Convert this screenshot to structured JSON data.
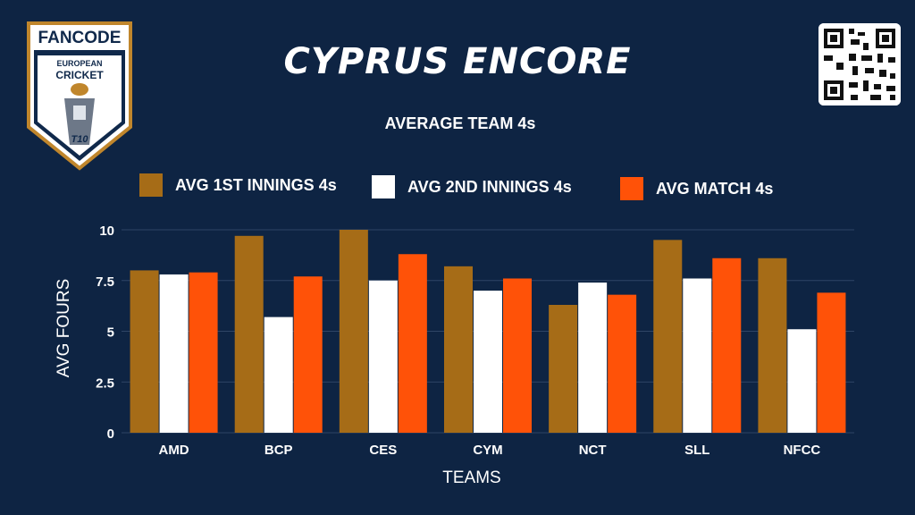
{
  "header": {
    "title": "CYPRUS ENCORE",
    "logo_brand": "FANCODE",
    "logo_line1": "EUROPEAN",
    "logo_line2": "CRICKET",
    "logo_badge": "T10"
  },
  "chart_data": {
    "type": "bar",
    "title": "AVERAGE TEAM 4s",
    "xlabel": "TEAMS",
    "ylabel": "AVG FOURS",
    "categories": [
      "AMD",
      "BCP",
      "CES",
      "CYM",
      "NCT",
      "SLL",
      "NFCC"
    ],
    "ylim": [
      0,
      10
    ],
    "yticks": [
      "0",
      "2.5",
      "5",
      "7.5",
      "10"
    ],
    "series": [
      {
        "name": "AVG 1ST INNINGS 4s",
        "color": "#a66c17",
        "values": [
          8.0,
          9.7,
          10.0,
          8.2,
          6.3,
          9.5,
          8.6
        ]
      },
      {
        "name": "AVG 2ND INNINGS 4s",
        "color": "#ffffff",
        "values": [
          7.8,
          5.7,
          7.5,
          7.0,
          7.4,
          7.6,
          5.1
        ]
      },
      {
        "name": "AVG MATCH 4s",
        "color": "#ff5208",
        "values": [
          7.9,
          7.7,
          8.8,
          7.6,
          6.8,
          8.6,
          6.9
        ]
      }
    ],
    "grid": true,
    "legend_position": "top"
  }
}
